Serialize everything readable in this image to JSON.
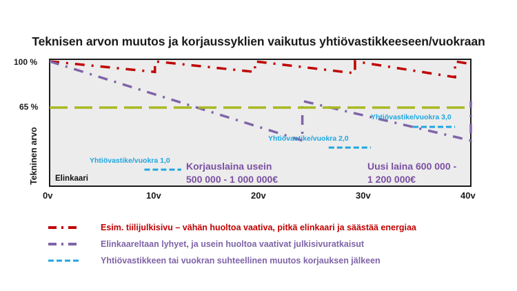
{
  "title": "Teknisen arvon muutos ja korjaussyklien vaikutus yhtiövastikkeeseen/vuokraan",
  "axes": {
    "y_ticks": [
      "100 %",
      "65 %"
    ],
    "y_title": "Tekninen arvo",
    "x_ticks": [
      "0v",
      "10v",
      "20v",
      "30v",
      "40v"
    ],
    "x_title": "Elinkaari"
  },
  "annotations": {
    "rent1": "Yhtiövastike/vuokra 1,0",
    "rent2": "Yhtiövastike/vuokra 2,0",
    "rent3": "Yhtiövastike/vuokra 3,0",
    "loan1_line1": "Korjauslaina usein",
    "loan1_line2": "500 000 - 1 000 000€",
    "loan2_line1": "Uusi laina 600 000 -",
    "loan2_line2": "1 200 000€"
  },
  "legend": [
    {
      "label": "Esim. tiilijulkisivu –  vähän huoltoa vaativa, pitkä elinkaari ja säästää energiaa",
      "color": "#c00000",
      "style": "dash-dot"
    },
    {
      "label": "Elinkaareltaan lyhyet, ja usein huoltoa vaativat julkisivuratkaisut",
      "color": "#7f64a8",
      "style": "dash-dot"
    },
    {
      "label": "Yhtiövastikkeen tai vuokran suhteellinen muutos korjauksen jälkeen",
      "color": "#1ea6e0",
      "style": "dash"
    }
  ],
  "colors": {
    "brick": "#c00000",
    "short": "#7f64a8",
    "rent": "#1ea6e0",
    "threshold": "#a8b820",
    "plot_bg": "#ececec",
    "frame": "#1a1a1a"
  },
  "chart_data": {
    "type": "line",
    "title": "Teknisen arvon muutos ja korjaussyklien vaikutus yhtiövastikkeeseen/vuokraan",
    "xlabel": "Elinkaari",
    "ylabel": "Tekninen arvo",
    "x_ticks": [
      0,
      10,
      20,
      30,
      40
    ],
    "x_tick_labels": [
      "0v",
      "10v",
      "20v",
      "30v",
      "40v"
    ],
    "y_tick_labels": [
      "100 %",
      "65 %"
    ],
    "xlim": [
      0,
      40
    ],
    "ylim_percent_approx": [
      25,
      100
    ],
    "grid": false,
    "legend_position": "below",
    "series": [
      {
        "name": "Esim. tiilijulkisivu – vähän huoltoa vaativa, pitkä elinkaari ja säästää energiaa",
        "style": "dash-dot",
        "color": "#c00000",
        "points": [
          [
            0,
            100
          ],
          [
            10,
            92
          ],
          [
            10,
            100
          ],
          [
            19.5,
            92
          ],
          [
            19.5,
            100
          ],
          [
            29,
            91
          ],
          [
            29,
            100
          ],
          [
            38.5,
            88
          ],
          [
            38.5,
            100
          ],
          [
            40,
            98
          ]
        ]
      },
      {
        "name": "Elinkaareltaan lyhyet, ja usein huoltoa vaativat julkisivuratkaisut",
        "style": "dash-dot",
        "color": "#7f64a8",
        "points": [
          [
            0,
            100
          ],
          [
            24,
            40
          ],
          [
            24,
            70
          ],
          [
            40,
            40
          ],
          [
            40,
            70
          ]
        ]
      },
      {
        "name": "Threshold 65 %",
        "style": "dash",
        "color": "#a8b820",
        "points": [
          [
            0,
            65
          ],
          [
            40,
            65
          ]
        ]
      },
      {
        "name": "Yhtiövastikkeen tai vuokran suhteellinen muutos korjauksen jälkeen",
        "style": "dash",
        "color": "#1ea6e0",
        "segments": [
          {
            "label": "Yhtiövastike/vuokra 1,0",
            "x": [
              9,
              12.5
            ],
            "level": 1.0
          },
          {
            "label": "Yhtiövastike/vuokra 2,0",
            "x": [
              26.5,
              30.5
            ],
            "level": 2.0
          },
          {
            "label": "Yhtiövastike/vuokra 3,0",
            "x": [
              34.5,
              38.5
            ],
            "level": 3.0
          }
        ]
      }
    ],
    "annotations": [
      "Korjauslaina usein 500 000 - 1 000 000€",
      "Uusi laina 600 000 - 1 200 000€"
    ]
  }
}
